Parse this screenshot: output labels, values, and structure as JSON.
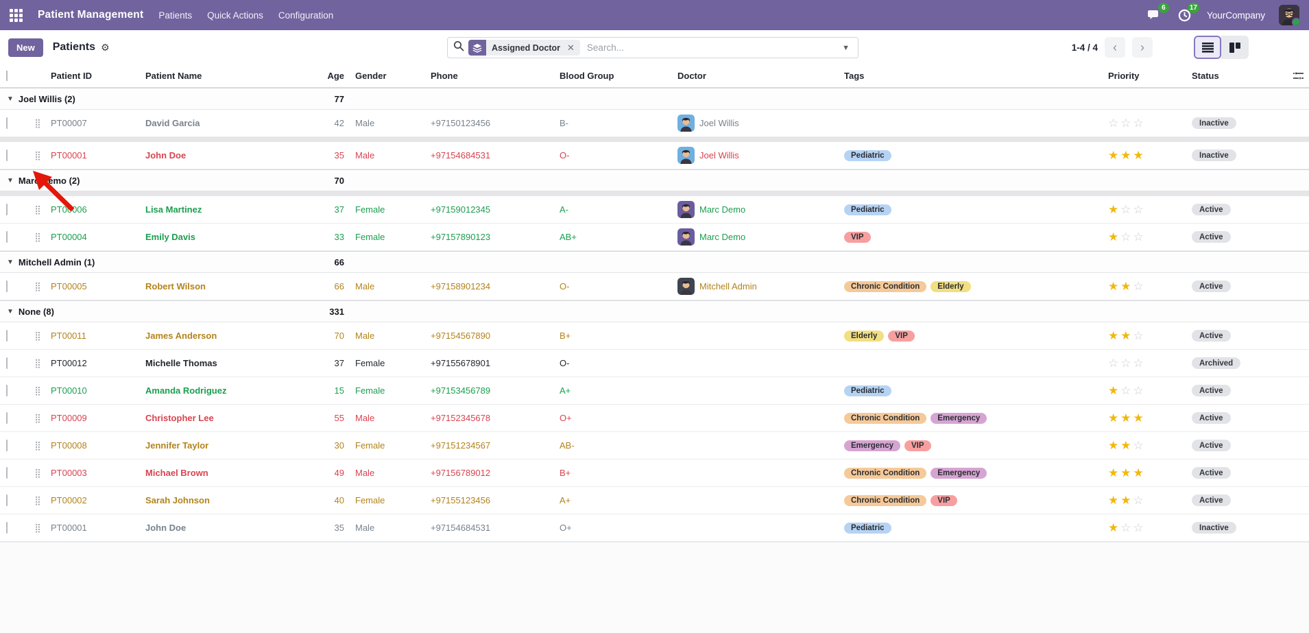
{
  "topbar": {
    "app_name": "Patient Management",
    "menus": [
      "Patients",
      "Quick Actions",
      "Configuration"
    ],
    "message_count": "6",
    "activity_count": "17",
    "company": "YourCompany",
    "accent_color": "#71639e",
    "badge_color": "#3ba23f"
  },
  "control_panel": {
    "new_button": "New",
    "title": "Patients",
    "search": {
      "facet_label": "Assigned Doctor",
      "placeholder": "Search..."
    },
    "pager": {
      "range": "1-4 / 4",
      "prev": "‹",
      "next": "›"
    }
  },
  "table": {
    "columns": [
      {
        "key": "check",
        "label": ""
      },
      {
        "key": "handle",
        "label": ""
      },
      {
        "key": "id",
        "label": "Patient ID"
      },
      {
        "key": "name",
        "label": "Patient Name"
      },
      {
        "key": "age",
        "label": "Age",
        "align": "right"
      },
      {
        "key": "gender",
        "label": "Gender"
      },
      {
        "key": "phone",
        "label": "Phone"
      },
      {
        "key": "blood",
        "label": "Blood Group"
      },
      {
        "key": "doctor",
        "label": "Doctor"
      },
      {
        "key": "tags",
        "label": "Tags"
      },
      {
        "key": "stars",
        "label": "Priority"
      },
      {
        "key": "status",
        "label": "Status"
      },
      {
        "key": "opt",
        "label": ""
      }
    ],
    "groups": [
      {
        "label": "Joel Willis (2)",
        "age_total": "77",
        "rows": [
          {
            "id": "PT00007",
            "name": "David Garcia",
            "age": "42",
            "gender": "Male",
            "phone": "+97150123456",
            "blood": "B-",
            "doctor": "Joel Willis",
            "avatar": "joel",
            "tags": [],
            "stars": 0,
            "status": "Inactive",
            "deco": "muted"
          },
          {
            "id": "PT00001",
            "name": "John Doe",
            "age": "35",
            "gender": "Male",
            "phone": "+97154684531",
            "blood": "O-",
            "doctor": "Joel Willis",
            "avatar": "joel",
            "tags": [
              "Pediatric"
            ],
            "stars": 3,
            "status": "Inactive",
            "deco": "danger",
            "gap_above": true
          }
        ]
      },
      {
        "label": "Marc Demo (2)",
        "age_total": "70",
        "rows": [
          {
            "id": "PT00006",
            "name": "Lisa Martinez",
            "age": "37",
            "gender": "Female",
            "phone": "+97159012345",
            "blood": "A-",
            "doctor": "Marc Demo",
            "avatar": "marc",
            "tags": [
              "Pediatric"
            ],
            "stars": 1,
            "status": "Active",
            "deco": "success",
            "gap_above": true
          },
          {
            "id": "PT00004",
            "name": "Emily Davis",
            "age": "33",
            "gender": "Female",
            "phone": "+97157890123",
            "blood": "AB+",
            "doctor": "Marc Demo",
            "avatar": "marc",
            "tags": [
              "VIP"
            ],
            "stars": 1,
            "status": "Active",
            "deco": "success"
          }
        ]
      },
      {
        "label": "Mitchell Admin (1)",
        "age_total": "66",
        "rows": [
          {
            "id": "PT00005",
            "name": "Robert Wilson",
            "age": "66",
            "gender": "Male",
            "phone": "+97158901234",
            "blood": "O-",
            "doctor": "Mitchell Admin",
            "avatar": "mitchell",
            "tags": [
              "Chronic Condition",
              "Elderly"
            ],
            "stars": 2,
            "status": "Active",
            "deco": "warning"
          }
        ]
      },
      {
        "label": "None (8)",
        "age_total": "331",
        "rows": [
          {
            "id": "PT00011",
            "name": "James Anderson",
            "age": "70",
            "gender": "Male",
            "phone": "+97154567890",
            "blood": "B+",
            "doctor": "",
            "tags": [
              "Elderly",
              "VIP"
            ],
            "stars": 2,
            "status": "Active",
            "deco": "warning"
          },
          {
            "id": "PT00012",
            "name": "Michelle Thomas",
            "age": "37",
            "gender": "Female",
            "phone": "+97155678901",
            "blood": "O-",
            "doctor": "",
            "tags": [],
            "stars": 0,
            "status": "Archived",
            "deco": "normal"
          },
          {
            "id": "PT00010",
            "name": "Amanda Rodriguez",
            "age": "15",
            "gender": "Female",
            "phone": "+97153456789",
            "blood": "A+",
            "doctor": "",
            "tags": [
              "Pediatric"
            ],
            "stars": 1,
            "status": "Active",
            "deco": "success"
          },
          {
            "id": "PT00009",
            "name": "Christopher Lee",
            "age": "55",
            "gender": "Male",
            "phone": "+97152345678",
            "blood": "O+",
            "doctor": "",
            "tags": [
              "Chronic Condition",
              "Emergency"
            ],
            "stars": 3,
            "status": "Active",
            "deco": "danger"
          },
          {
            "id": "PT00008",
            "name": "Jennifer Taylor",
            "age": "30",
            "gender": "Female",
            "phone": "+97151234567",
            "blood": "AB-",
            "doctor": "",
            "tags": [
              "Emergency",
              "VIP"
            ],
            "stars": 2,
            "status": "Active",
            "deco": "warning"
          },
          {
            "id": "PT00003",
            "name": "Michael Brown",
            "age": "49",
            "gender": "Male",
            "phone": "+97156789012",
            "blood": "B+",
            "doctor": "",
            "tags": [
              "Chronic Condition",
              "Emergency"
            ],
            "stars": 3,
            "status": "Active",
            "deco": "danger"
          },
          {
            "id": "PT00002",
            "name": "Sarah Johnson",
            "age": "40",
            "gender": "Female",
            "phone": "+97155123456",
            "blood": "A+",
            "doctor": "",
            "tags": [
              "Chronic Condition",
              "VIP"
            ],
            "stars": 2,
            "status": "Active",
            "deco": "warning"
          },
          {
            "id": "PT00001",
            "name": "John Doe",
            "age": "35",
            "gender": "Male",
            "phone": "+97154684531",
            "blood": "O+",
            "doctor": "",
            "tags": [
              "Pediatric"
            ],
            "stars": 1,
            "status": "Inactive",
            "deco": "muted"
          }
        ]
      }
    ]
  },
  "tag_colors": {
    "Pediatric": "#b6d3f3",
    "VIP": "#f79f9f",
    "Chronic Condition": "#f5c998",
    "Elderly": "#f2df82",
    "Emergency": "#d6a4d2"
  },
  "decoration_colors": {
    "muted": "#78828c",
    "danger": "#d9434f",
    "success": "#1b9e4f",
    "warning": "#b3831c",
    "normal": "#23272e"
  },
  "avatar_colors": {
    "joel": "#6fb0e0",
    "marc": "#6a5d9e",
    "mitchell": "#3f4450"
  },
  "pointer_annotation": {
    "shape": "red-arrow",
    "target": "drag handle of row PT00001 (John Doe)"
  }
}
